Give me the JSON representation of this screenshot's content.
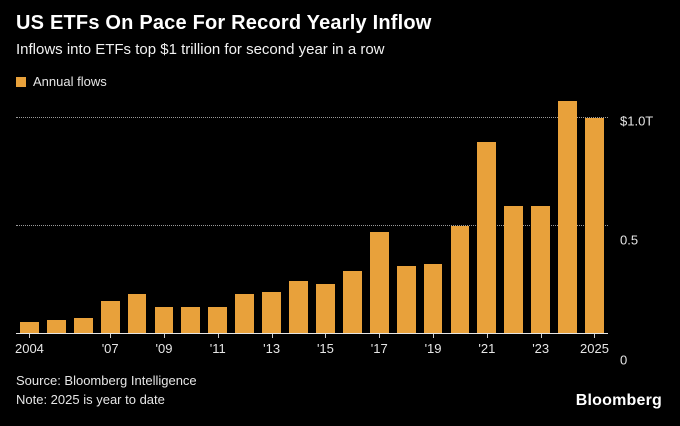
{
  "header": {
    "title": "US ETFs On Pace For Record Yearly Inflow",
    "subtitle": "Inflows into ETFs top $1 trillion for second year in a row"
  },
  "legend": {
    "label": "Annual flows",
    "swatch_color": "#E8A13B"
  },
  "footer": {
    "source": "Source: Bloomberg Intelligence",
    "note": "Note: 2025 is year to date",
    "logo": "Bloomberg"
  },
  "chart_data": {
    "type": "bar",
    "title": "US ETFs On Pace For Record Yearly Inflow",
    "subtitle": "Inflows into ETFs top $1 trillion for second year in a row",
    "unit": "trillions USD",
    "bar_color": "#E8A13B",
    "background_color": "#000000",
    "grid": "dotted horizontal",
    "legend_entries": [
      "Annual flows"
    ],
    "legend_position": "top-left",
    "categories": [
      2004,
      2005,
      2006,
      2007,
      2008,
      2009,
      2010,
      2011,
      2012,
      2013,
      2014,
      2015,
      2016,
      2017,
      2018,
      2019,
      2020,
      2021,
      2022,
      2023,
      2024,
      2025
    ],
    "values": [
      0.05,
      0.06,
      0.07,
      0.15,
      0.18,
      0.12,
      0.12,
      0.12,
      0.18,
      0.19,
      0.24,
      0.23,
      0.29,
      0.47,
      0.31,
      0.32,
      0.5,
      0.89,
      0.59,
      0.59,
      1.08,
      1.0
    ],
    "ylim": [
      0,
      1.09
    ],
    "y_ticks": [
      {
        "value": 1.0,
        "label": "$1.0T"
      },
      {
        "value": 0.5,
        "label": "0.5"
      },
      {
        "value": 0,
        "label": "0"
      }
    ],
    "x_tick_labels": [
      "2004",
      "",
      "",
      "'07",
      "",
      "'09",
      "",
      "'11",
      "",
      "'13",
      "",
      "'15",
      "",
      "'17",
      "",
      "'19",
      "",
      "'21",
      "",
      "'23",
      "",
      "2025"
    ],
    "note": "2025 is year to date",
    "source": "Bloomberg Intelligence"
  }
}
